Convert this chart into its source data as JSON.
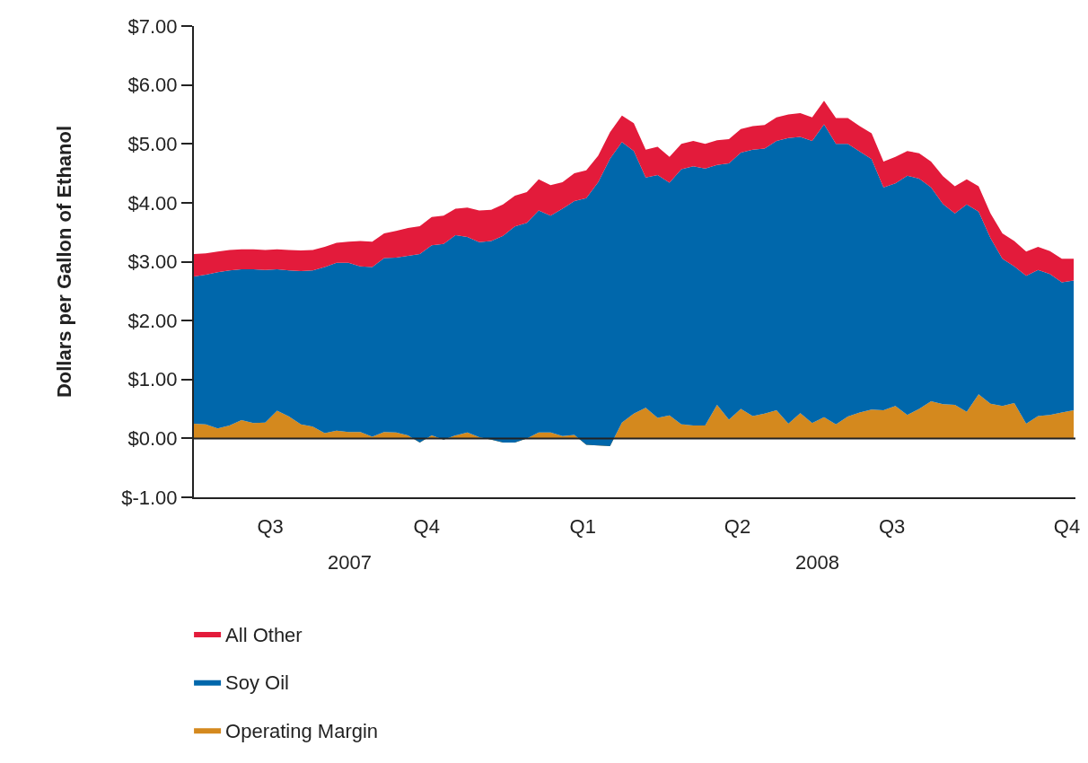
{
  "chart_data": {
    "type": "area",
    "stacked": true,
    "ylabel": "Dollars per Gallon of Ethanol",
    "x": [
      "2007-07-01",
      "2007-07-08",
      "2007-07-15",
      "2007-07-22",
      "2007-07-29",
      "2007-08-05",
      "2007-08-12",
      "2007-08-19",
      "2007-08-26",
      "2007-09-02",
      "2007-09-09",
      "2007-09-16",
      "2007-09-23",
      "2007-09-30",
      "2007-10-07",
      "2007-10-14",
      "2007-10-21",
      "2007-10-28",
      "2007-11-04",
      "2007-11-11",
      "2007-11-18",
      "2007-11-25",
      "2007-12-02",
      "2007-12-09",
      "2007-12-16",
      "2007-12-23",
      "2007-12-30",
      "2008-01-06",
      "2008-01-13",
      "2008-01-20",
      "2008-01-27",
      "2008-02-03",
      "2008-02-10",
      "2008-02-17",
      "2008-02-24",
      "2008-03-02",
      "2008-03-09",
      "2008-03-16",
      "2008-03-23",
      "2008-03-30",
      "2008-04-06",
      "2008-04-13",
      "2008-04-20",
      "2008-04-27",
      "2008-05-04",
      "2008-05-11",
      "2008-05-18",
      "2008-05-25",
      "2008-06-01",
      "2008-06-08",
      "2008-06-15",
      "2008-06-22",
      "2008-06-29",
      "2008-07-06",
      "2008-07-13",
      "2008-07-20",
      "2008-07-27",
      "2008-08-03",
      "2008-08-10",
      "2008-08-17",
      "2008-08-24",
      "2008-08-31",
      "2008-09-07",
      "2008-09-14",
      "2008-09-21",
      "2008-09-28",
      "2008-10-05",
      "2008-10-12",
      "2008-10-19",
      "2008-10-26",
      "2008-11-02",
      "2008-11-09",
      "2008-11-16",
      "2008-11-23",
      "2008-11-30"
    ],
    "series": [
      {
        "name": "Operating Margin",
        "color": "#d4891e",
        "values": [
          0.25,
          0.24,
          0.17,
          0.22,
          0.31,
          0.26,
          0.27,
          0.47,
          0.37,
          0.24,
          0.2,
          0.09,
          0.13,
          0.11,
          0.11,
          0.03,
          0.11,
          0.1,
          0.05,
          -0.07,
          0.05,
          -0.02,
          0.05,
          0.1,
          0.02,
          -0.02,
          -0.07,
          -0.07,
          0.0,
          0.1,
          0.1,
          0.04,
          0.06,
          -0.11,
          -0.12,
          -0.13,
          0.27,
          0.42,
          0.52,
          0.35,
          0.39,
          0.24,
          0.22,
          0.22,
          0.57,
          0.32,
          0.5,
          0.38,
          0.42,
          0.48,
          0.25,
          0.43,
          0.26,
          0.36,
          0.24,
          0.37,
          0.44,
          0.49,
          0.48,
          0.55,
          0.4,
          0.5,
          0.63,
          0.58,
          0.57,
          0.45,
          0.75,
          0.59,
          0.55,
          0.6,
          0.25,
          0.38,
          0.4,
          0.44,
          0.48
        ]
      },
      {
        "name": "Soy Oil",
        "color": "#0067ab",
        "values": [
          2.5,
          2.54,
          2.65,
          2.63,
          2.56,
          2.61,
          2.59,
          2.4,
          2.48,
          2.6,
          2.65,
          2.82,
          2.85,
          2.87,
          2.81,
          2.88,
          2.95,
          2.97,
          3.05,
          3.2,
          3.23,
          3.32,
          3.4,
          3.32,
          3.31,
          3.37,
          3.51,
          3.67,
          3.66,
          3.77,
          3.68,
          3.86,
          3.97,
          4.19,
          4.47,
          4.88,
          4.76,
          4.46,
          3.91,
          4.12,
          3.95,
          4.33,
          4.4,
          4.36,
          4.07,
          4.35,
          4.35,
          4.52,
          4.5,
          4.57,
          4.85,
          4.69,
          4.79,
          4.97,
          4.76,
          4.63,
          4.43,
          4.25,
          3.78,
          3.78,
          4.06,
          3.91,
          3.63,
          3.4,
          3.25,
          3.52,
          3.1,
          2.81,
          2.5,
          2.32,
          2.51,
          2.48,
          2.39,
          2.21,
          2.2
        ]
      },
      {
        "name": "All Other",
        "color": "#e31b3b",
        "values": [
          0.38,
          0.36,
          0.35,
          0.35,
          0.34,
          0.34,
          0.34,
          0.34,
          0.35,
          0.35,
          0.35,
          0.34,
          0.34,
          0.36,
          0.43,
          0.43,
          0.42,
          0.45,
          0.47,
          0.47,
          0.48,
          0.48,
          0.45,
          0.5,
          0.54,
          0.53,
          0.53,
          0.52,
          0.52,
          0.53,
          0.52,
          0.45,
          0.47,
          0.47,
          0.45,
          0.45,
          0.45,
          0.47,
          0.47,
          0.48,
          0.44,
          0.43,
          0.43,
          0.42,
          0.42,
          0.41,
          0.4,
          0.4,
          0.4,
          0.4,
          0.4,
          0.4,
          0.4,
          0.4,
          0.44,
          0.44,
          0.43,
          0.44,
          0.44,
          0.45,
          0.42,
          0.43,
          0.44,
          0.47,
          0.46,
          0.43,
          0.43,
          0.42,
          0.43,
          0.43,
          0.41,
          0.39,
          0.39,
          0.4,
          0.37
        ]
      }
    ],
    "xlim": [
      "2007-07-01",
      "2008-12-01"
    ],
    "xticks": [
      {
        "value": "2007-08-15",
        "label": "Q3"
      },
      {
        "value": "2007-11-15",
        "label": "Q4"
      },
      {
        "value": "2008-02-15",
        "label": "Q1"
      },
      {
        "value": "2008-05-16",
        "label": "Q2"
      },
      {
        "value": "2008-08-15",
        "label": "Q3"
      },
      {
        "value": "2008-11-26",
        "label": "Q4"
      }
    ],
    "ylim": [
      -1,
      7
    ],
    "yticks": [
      {
        "value": -1,
        "label": "$-1.00"
      },
      {
        "value": 0,
        "label": "$0.00"
      },
      {
        "value": 1,
        "label": "$1.00"
      },
      {
        "value": 2,
        "label": "$2.00"
      },
      {
        "value": 3,
        "label": "$3.00"
      },
      {
        "value": 4,
        "label": "$4.00"
      },
      {
        "value": 5,
        "label": "$5.00"
      },
      {
        "value": 6,
        "label": "$6.00"
      },
      {
        "value": 7,
        "label": "$7.00"
      }
    ],
    "annotations": [
      "2007",
      "2008"
    ],
    "ref_lines": [
      {
        "axis": "y",
        "value": 0,
        "label": null,
        "color": "#222222"
      }
    ],
    "legend": "bottom left"
  }
}
